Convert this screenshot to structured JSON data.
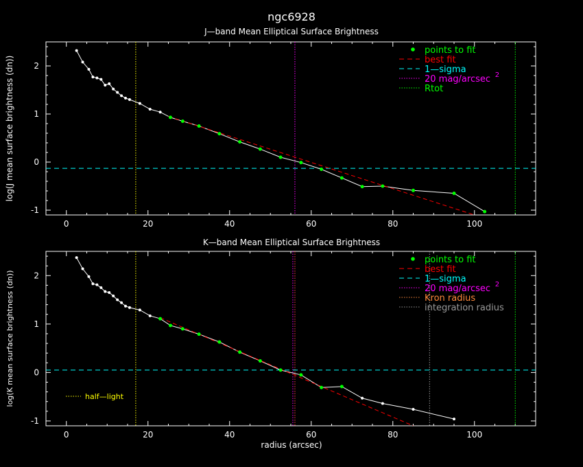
{
  "figure_title": "ngc6928",
  "colors": {
    "background": "#000000",
    "axes": "#ffffff",
    "data": "#ffffff",
    "fit_points": "#00ff00",
    "best_fit": "#ff0000",
    "one_sigma": "#00ffff",
    "mag20": "#ff00ff",
    "rtot": "#00ff00",
    "kron": "#ff4040",
    "integration": "#9a9a9a",
    "half_light": "#ffff00"
  },
  "chart_data": [
    {
      "type": "line",
      "title": "J—band Mean Elliptical Surface Brightness",
      "xlabel": "",
      "ylabel": "log(J mean surface brightness (dn))",
      "xlim": [
        -5,
        115
      ],
      "ylim": [
        -1.1,
        2.5
      ],
      "xticks": [
        0,
        20,
        40,
        60,
        80,
        100
      ],
      "yticks": [
        -1,
        0,
        1,
        2
      ],
      "grid": false,
      "legend": "top-right",
      "legend_entries": [
        {
          "key": "fit",
          "label": "points to fit",
          "style": "dot",
          "color": "#00ff00"
        },
        {
          "key": "bestfit",
          "label": "best fit",
          "style": "dash",
          "color": "#ff0000"
        },
        {
          "key": "sigma",
          "label": "1—sigma",
          "style": "dash",
          "color": "#00ffff"
        },
        {
          "key": "mag20",
          "label": "20 mag/arcsec",
          "sup": "2",
          "style": "dot-line",
          "color": "#ff00ff"
        },
        {
          "key": "rtot",
          "label": "Rtot",
          "style": "dot-line",
          "color": "#00ff00"
        }
      ],
      "data_x": [
        2.5,
        4,
        5.5,
        6.5,
        7.5,
        8.5,
        9.5,
        10.5,
        11.5,
        12.5,
        13.5,
        14.5,
        15.5,
        18,
        20.5,
        23,
        25.5,
        28.5,
        32.5,
        37.5,
        42.5,
        47.5,
        52.5,
        57.5,
        62.5,
        67.5,
        72.5,
        77.5,
        85,
        95,
        102.5
      ],
      "data_y": [
        2.32,
        2.08,
        1.93,
        1.77,
        1.75,
        1.72,
        1.6,
        1.63,
        1.52,
        1.45,
        1.38,
        1.33,
        1.3,
        1.22,
        1.1,
        1.04,
        0.93,
        0.85,
        0.75,
        0.59,
        0.42,
        0.27,
        0.1,
        -0.01,
        -0.15,
        -0.33,
        -0.51,
        -0.5,
        -0.59,
        -0.65,
        -1.03
      ],
      "fit_x": [
        25.5,
        28.5,
        32.5,
        37.5,
        42.5,
        47.5,
        52.5,
        57.5,
        62.5,
        67.5,
        72.5,
        77.5,
        85,
        95,
        102.5
      ],
      "fit_y": [
        0.93,
        0.85,
        0.75,
        0.59,
        0.42,
        0.27,
        0.1,
        -0.01,
        -0.15,
        -0.33,
        -0.51,
        -0.5,
        -0.59,
        -0.65,
        -1.03
      ],
      "best_fit": {
        "x": [
          25,
          100
        ],
        "y": [
          0.95,
          -1.1
        ]
      },
      "one_sigma_y": -0.13,
      "vlines": [
        {
          "key": "half",
          "x": 17,
          "color": "#ffff00"
        },
        {
          "key": "mag20",
          "x": 56,
          "color": "#ff00ff"
        },
        {
          "key": "rtot",
          "x": 110,
          "color": "#00ff00"
        }
      ]
    },
    {
      "type": "line",
      "title": "K—band Mean Elliptical Surface Brightness",
      "xlabel": "radius (arcsec)",
      "ylabel": "log(K mean surface brightness (dn))",
      "xlim": [
        -5,
        115
      ],
      "ylim": [
        -1.1,
        2.5
      ],
      "xticks": [
        0,
        20,
        40,
        60,
        80,
        100
      ],
      "yticks": [
        -1,
        0,
        1,
        2
      ],
      "grid": false,
      "legend": "top-right",
      "legend_entries": [
        {
          "key": "fit",
          "label": "points to fit",
          "style": "dot",
          "color": "#00ff00"
        },
        {
          "key": "bestfit",
          "label": "best fit",
          "style": "dash",
          "color": "#ff0000"
        },
        {
          "key": "sigma",
          "label": "1—sigma",
          "style": "dash",
          "color": "#00ffff"
        },
        {
          "key": "mag20",
          "label": "20 mag/arcsec",
          "sup": "2",
          "style": "dot-line",
          "color": "#ff00ff"
        },
        {
          "key": "kron",
          "label": "Kron radius",
          "style": "dot-line",
          "color": "#ff8a3c"
        },
        {
          "key": "integ",
          "label": "integration radius",
          "style": "dot-line",
          "color": "#9a9a9a"
        }
      ],
      "half_light_label": "half—light",
      "data_x": [
        2.5,
        4,
        5.5,
        6.5,
        7.5,
        8.5,
        9.5,
        10.5,
        11.5,
        12.5,
        13.5,
        14.5,
        15.5,
        18,
        20.5,
        23,
        25.5,
        28.5,
        32.5,
        37.5,
        42.5,
        47.5,
        52.5,
        57.5,
        62.5,
        67.5,
        72.5,
        77.5,
        85,
        95
      ],
      "data_y": [
        2.37,
        2.14,
        1.98,
        1.83,
        1.81,
        1.75,
        1.67,
        1.65,
        1.58,
        1.5,
        1.44,
        1.37,
        1.34,
        1.29,
        1.17,
        1.11,
        0.97,
        0.9,
        0.79,
        0.63,
        0.42,
        0.24,
        0.05,
        -0.05,
        -0.31,
        -0.29,
        -0.53,
        -0.64,
        -0.76,
        -0.96
      ],
      "fit_x": [
        23,
        25.5,
        28.5,
        32.5,
        37.5,
        42.5,
        47.5,
        52.5,
        57.5,
        62.5,
        67.5
      ],
      "fit_y": [
        1.11,
        0.97,
        0.9,
        0.79,
        0.63,
        0.42,
        0.24,
        0.05,
        -0.05,
        -0.31,
        -0.29
      ],
      "best_fit": {
        "x": [
          23,
          85
        ],
        "y": [
          1.13,
          -1.1
        ]
      },
      "one_sigma_y": 0.05,
      "vlines": [
        {
          "key": "half",
          "x": 17,
          "color": "#ffff00"
        },
        {
          "key": "mag20",
          "x": 55.5,
          "color": "#ff00ff"
        },
        {
          "key": "kron",
          "x": 56,
          "color": "#ff4040"
        },
        {
          "key": "integ",
          "x": 89,
          "color": "#9a9a9a"
        },
        {
          "key": "rtot",
          "x": 110,
          "color": "#00ff00"
        }
      ]
    }
  ]
}
